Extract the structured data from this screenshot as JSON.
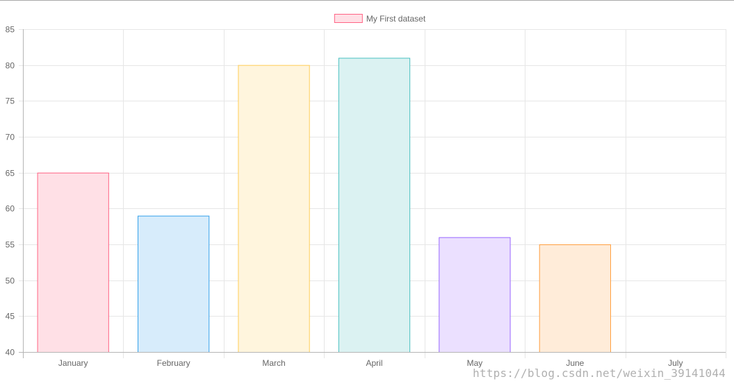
{
  "chart_data": {
    "type": "bar",
    "categories": [
      "January",
      "February",
      "March",
      "April",
      "May",
      "June",
      "July"
    ],
    "series": [
      {
        "name": "My First dataset",
        "values": [
          65,
          59,
          80,
          81,
          56,
          55,
          null
        ],
        "fill_colors": [
          "#ffe0e6",
          "#d7ecfb",
          "#fff5dd",
          "#dbf2f2",
          "#ebe0ff",
          "#ffecd9",
          "#f4f5f5"
        ],
        "border_colors": [
          "#ff6384",
          "#36a2eb",
          "#ffcd56",
          "#4bc0c0",
          "#9966ff",
          "#ff9f40",
          "#c9cbcf"
        ]
      }
    ],
    "ylim": [
      40,
      85
    ],
    "yticks": [
      85,
      80,
      75,
      70,
      65,
      60,
      55,
      50,
      45,
      40
    ],
    "legend": {
      "placement": "top-center",
      "label": "My First dataset",
      "fill": "#ffe0e6",
      "border": "#ff6384"
    },
    "grid": true,
    "grid_color": "#e6e6e6",
    "tick_color": "#666666",
    "title": "",
    "xlabel": "",
    "ylabel": ""
  },
  "watermark": "https://blog.csdn.net/weixin_39141044"
}
